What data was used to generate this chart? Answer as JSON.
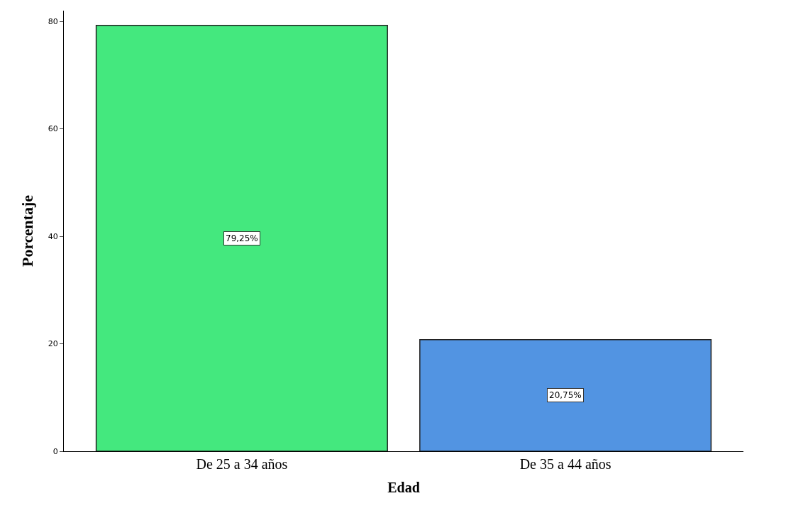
{
  "chart_data": {
    "type": "bar",
    "xlabel": "Edad",
    "ylabel": "Porcentaje",
    "categories": [
      "De 25 a 34 años",
      "De 35 a 44 años"
    ],
    "values": [
      79.25,
      20.75
    ],
    "colors": [
      "#44e87e",
      "#5294e2"
    ],
    "value_labels": [
      "79,25%",
      "20,75%"
    ],
    "ylim": [
      0,
      82
    ],
    "yticks": [
      0,
      20,
      40,
      60,
      80
    ]
  }
}
